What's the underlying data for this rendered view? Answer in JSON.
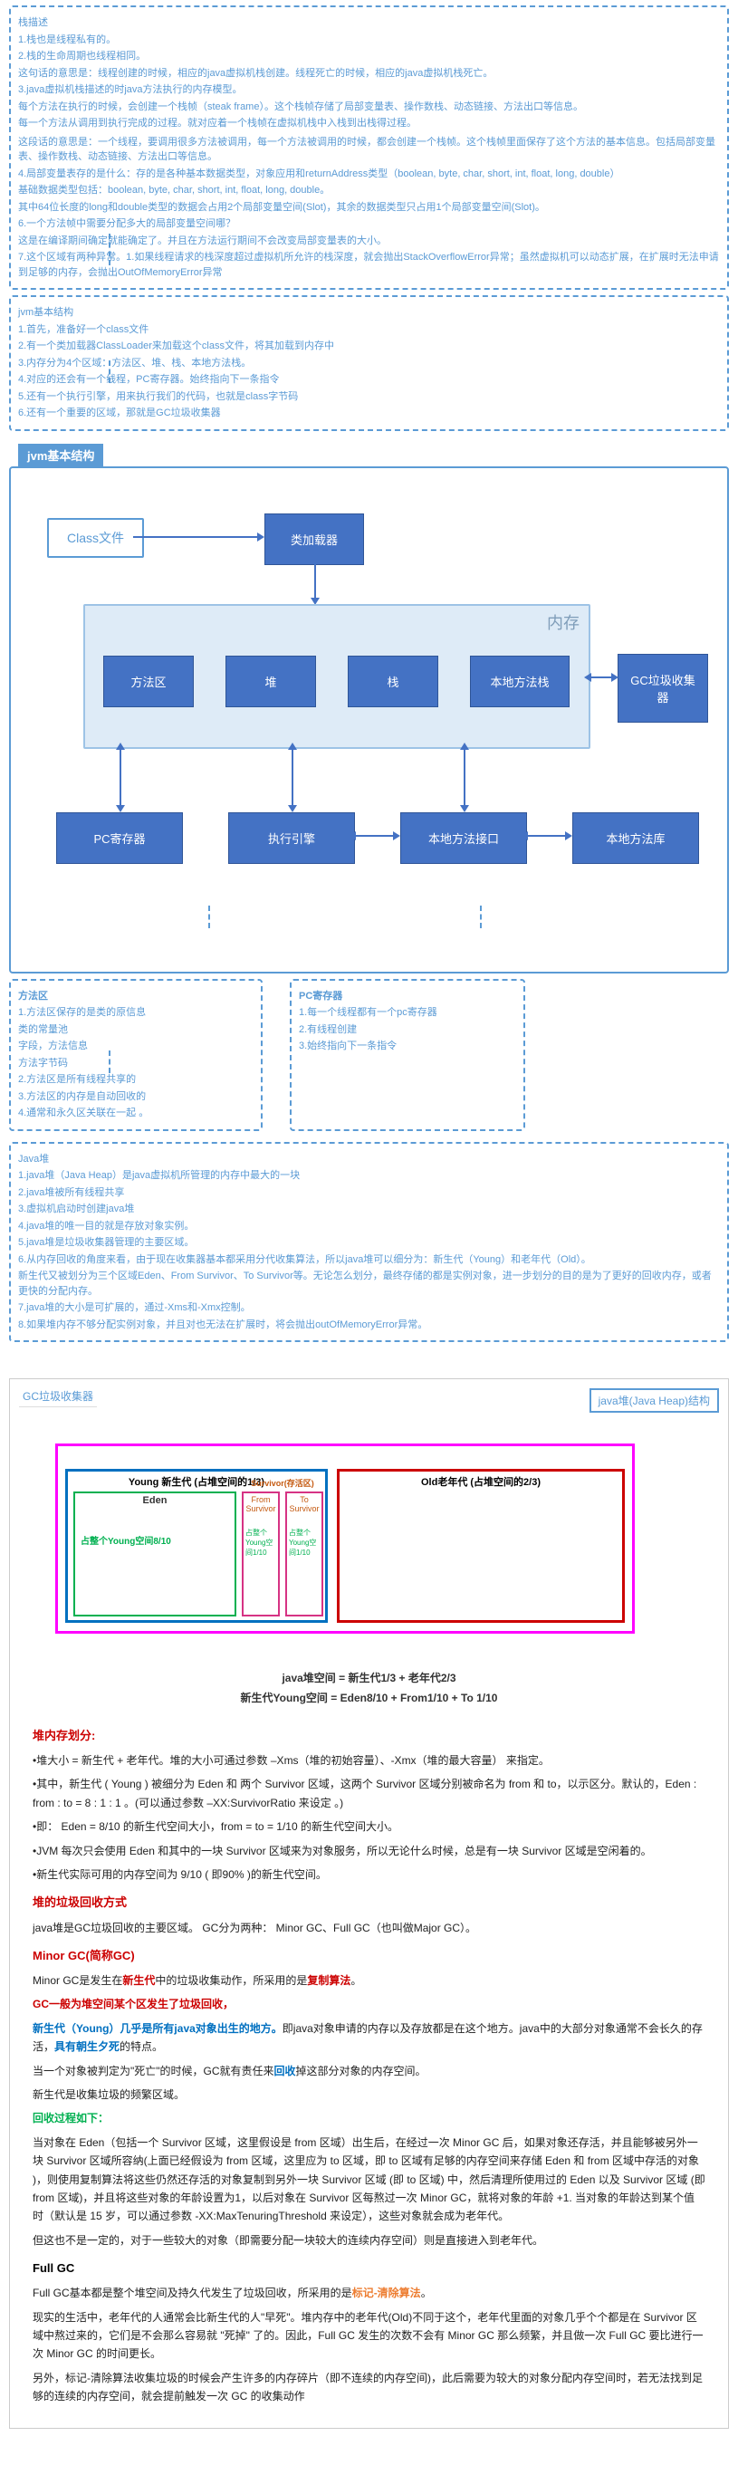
{
  "note1": {
    "lines": [
      "栈描述",
      "1.栈也是线程私有的。",
      "2.栈的生命周期也线程相同。",
      "   这句话的意思是：线程创建的时候，相应的java虚拟机栈创建。线程死亡的时候，相应的java虚拟机栈死亡。",
      "3.java虚拟机栈描述的时java方法执行的内存模型。",
      "   每个方法在执行的时候，会创建一个栈帧（steak frame）。这个栈帧存储了局部变量表、操作数栈、动态链接、方法出口等信息。",
      "   每一个方法从调用到执行完成的过程。就对应着一个栈帧在虚拟机栈中入栈到出栈得过程。",
      "",
      "   这段话的意思是：一个线程，要调用很多方法被调用，每一个方法被调用的时候，都会创建一个栈帧。这个栈帧里面保存了这个方法的基本信息。包括局部变量表、操作数栈、动态链接、方法出口等信息。",
      "4.局部变量表存的是什么：存的是各种基本数据类型，对象应用和returnAddress类型（boolean, byte, char, short, int, float, long, double）",
      "   基础数据类型包括：boolean, byte, char, short, int, float, long, double。",
      "   其中64位长度的long和double类型的数据会占用2个局部变量空间(Slot)，其余的数据类型只占用1个局部变量空间(Slot)。",
      "6.一个方法帧中需要分配多大的局部变量空间哪？",
      "   这是在编译期间确定就能确定了。并且在方法运行期间不会改变局部变量表的大小。",
      "7.这个区域有两种异常。1.如果线程请求的栈深度超过虚拟机所允许的栈深度，就会抛出StackOverflowError异常；虽然虚拟机可以动态扩展，在扩展时无法申请到足够的内存，会抛出OutOfMemoryError异常"
    ]
  },
  "note2": {
    "lines": [
      "jvm基本结构",
      "1.首先，准备好一个class文件",
      "2.有一个类加载器ClassLoader来加载这个class文件，将其加载到内存中",
      "3.内存分为4个区域：方法区、堆、栈、本地方法栈。",
      "4.对应的还会有一个线程，PC寄存器。始终指向下一条指令",
      "5.还有一个执行引擎，用来执行我们的代码，也就是class字节码",
      "6.还有一个重要的区域，那就是GC垃圾收集器"
    ]
  },
  "section_title": "jvm基本结构",
  "diagram": {
    "class_file": "Class文件",
    "loader": "类加载器",
    "memory_label": "内存",
    "method_area": "方法区",
    "heap": "堆",
    "stack": "栈",
    "native_stack": "本地方法栈",
    "gc": "GC垃圾收集器",
    "pc": "PC寄存器",
    "engine": "执行引擎",
    "native_interface": "本地方法接口",
    "native_lib": "本地方法库"
  },
  "note3": {
    "title": "方法区",
    "lines": [
      "1.方法区保存的是类的原信息",
      "   类的常量池",
      "   字段，方法信息",
      "   方法字节码",
      "2.方法区是所有线程共享的",
      "3.方法区的内存是自动回收的",
      "4.通常和永久区关联在一起 。 "
    ]
  },
  "note4": {
    "title": "PC寄存器",
    "lines": [
      "1.每一个线程都有一个pc寄存器",
      "2.有线程创建",
      "3.始终指向下一条指令"
    ]
  },
  "note5": {
    "lines": [
      "Java堆",
      "1.java堆（Java Heap）是java虚拟机所管理的内存中最大的一块",
      "2.java堆被所有线程共享",
      "3.虚拟机启动时创建java堆",
      "4.java堆的唯一目的就是存放对象实例。",
      "5.java堆是垃圾收集器管理的主要区域。",
      "6.从内存回收的角度来看，由于现在收集器基本都采用分代收集算法，所以java堆可以细分为：新生代（Young）和老年代（Old）。",
      "新生代又被划分为三个区域Eden、From Survivor、To Survivor等。无论怎么划分，最终存储的都是实例对象，进一步划分的目的是为了更好的回收内存，或者更快的分配内存。",
      "7.java堆的大小是可扩展的，通过-Xms和-Xmx控制。",
      "8.如果堆内存不够分配实例对象，并且对也无法在扩展时，将会抛出outOfMemoryError异常。"
    ]
  },
  "gc": {
    "title": "GC垃圾收集器",
    "heap_struct_label": "java堆(Java Heap)结构",
    "young_title": "Young 新生代 (占堆空间的1/3)",
    "old_title": "Old老年代 (占堆空间的2/3)",
    "eden_label": "Eden",
    "eden_ratio": "占整个Young空间8/10",
    "from_label": "From Survivor",
    "to_label": "To Survivor",
    "from_ratio": "占整个Young空间1/10",
    "to_ratio": "占整个Young空间1/10",
    "surv_head": "Survivor(存活区)",
    "formula1": "java堆空间 = 新生代1/3 + 老年代2/3",
    "formula2": "新生代Young空间 = Eden8/10 + From1/10 + To 1/10"
  },
  "doc": {
    "h1": "堆内存划分:",
    "p1": "•堆大小 = 新生代 + 老年代。堆的大小可通过参数 –Xms（堆的初始容量）、-Xmx（堆的最大容量） 来指定。",
    "p2": "•其中，新生代 ( Young ) 被细分为 Eden 和 两个 Survivor 区域，这两个 Survivor 区域分别被命名为 from 和 to，以示区分。默认的，Eden : from : to = 8 : 1 : 1 。(可以通过参数 –XX:SurvivorRatio 来设定 。)",
    "p3": "•即： Eden = 8/10 的新生代空间大小，from = to = 1/10 的新生代空间大小。",
    "p4": "•JVM 每次只会使用 Eden 和其中的一块 Survivor 区域来为对象服务，所以无论什么时候，总是有一块 Survivor 区域是空闲着的。",
    "p5": "•新生代实际可用的内存空间为 9/10 ( 即90% )的新生代空间。",
    "h2": "堆的垃圾回收方式",
    "p6": "java堆是GC垃圾回收的主要区域。 GC分为两种： Minor GC、Full GC（也叫做Major GC）。",
    "h3": "Minor GC(简称GC)",
    "p7": "Minor GC是发生在",
    "p7b": "新生代",
    "p7c": "中的垃圾收集动作，所采用的是",
    "p7d": "复制算法",
    "p7e": "。",
    "p8a": "GC一般为堆空间某个区发生了垃圾回收，",
    "p9": "新生代（Young）几乎是所有java对象出生的地方。",
    "p9b": "即java对象申请的内存以及存放都是在这个地方。java中的大部分对象通常不会长久的存活，",
    "p9c": "具有朝生夕死",
    "p9d": "的特点。",
    "p10": "当一个对象被判定为\"死亡\"的时候，GC就有责任来",
    "p10b": "回收",
    "p10c": "掉这部分对象的内存空间。",
    "p11": "新生代是收集垃圾的频繁区域。",
    "h4": "回收过程如下：",
    "p12": "当对象在 Eden（包括一个 Survivor 区域，这里假设是 from 区域）出生后，在经过一次 Minor GC 后，如果对象还存活，并且能够被另外一块 Survivor 区域所容纳(上面已经假设为 from 区域，这里应为 to 区域，即 to 区域有足够的内存空间来存储 Eden 和 from 区域中存活的对象 )，则使用复制算法将这些仍然还存活的对象复制到另外一块 Survivor 区域 (即 to 区域) 中，然后清理所使用过的 Eden 以及 Survivor 区域 (即from 区域)，并且将这些对象的年龄设置为1，以后对象在 Survivor 区每熬过一次 Minor GC，就将对象的年龄 +1. 当对象的年龄达到某个值时（默认是 15 岁，可以通过参数 -XX:MaxTenuringThreshold 来设定），这些对象就会成为老年代。",
    "p13": "但这也不是一定的，对于一些较大的对象（即需要分配一块较大的连续内存空间）则是直接进入到老年代。",
    "h5": "Full GC",
    "p14a": "Full GC基本都是整个堆空间及持久代发生了垃圾回收，所采用的是",
    "p14b": "标记-清除算法",
    "p14c": "。",
    "p15": "现实的生活中，老年代的人通常会比新生代的人\"早死\"。堆内存中的老年代(Old)不同于这个，老年代里面的对象几乎个个都是在 Survivor 区域中熬过来的，它们是不会那么容易就 \"死掉\" 了的。因此，Full GC 发生的次数不会有 Minor GC 那么频繁，并且做一次 Full GC 要比进行一次 Minor GC 的时间更长。",
    "p16": "另外，标记-清除算法收集垃圾的时候会产生许多的内存碎片（即不连续的内存空间)，此后需要为较大的对象分配内存空间时，若无法找到足够的连续的内存空间，就会提前触发一次 GC 的收集动作"
  }
}
